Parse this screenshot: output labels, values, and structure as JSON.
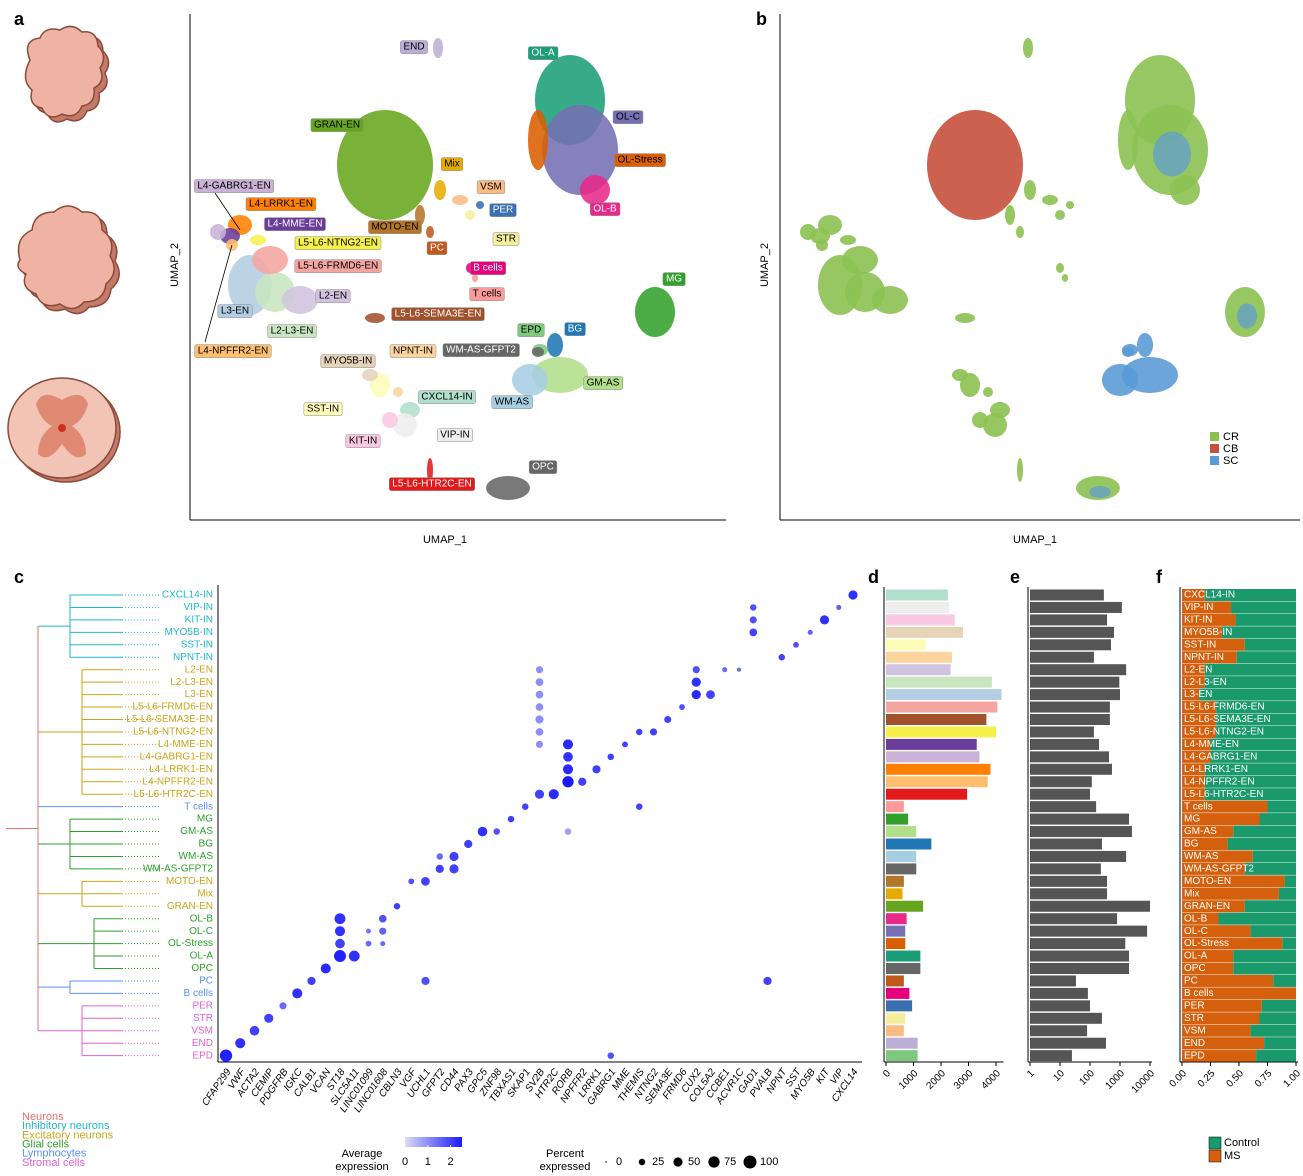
{
  "chart_data": [
    {
      "type": "umap",
      "panel": "a",
      "x_label": "UMAP_1",
      "y_label": "UMAP_2",
      "clusters": [
        {
          "name": "CXCL14-IN",
          "color": "#b2dfcd"
        },
        {
          "name": "VIP-IN",
          "color": "#eeeeee"
        },
        {
          "name": "KIT-IN",
          "color": "#f9c9e3"
        },
        {
          "name": "MYO5B-IN",
          "color": "#e6d3b8"
        },
        {
          "name": "SST-IN",
          "color": "#fdfcb8"
        },
        {
          "name": "NPNT-IN",
          "color": "#fdd49e"
        },
        {
          "name": "L2-EN",
          "color": "#d2c4e0"
        },
        {
          "name": "L2-L3-EN",
          "color": "#c8e6c0"
        },
        {
          "name": "L3-EN",
          "color": "#b3cde3"
        },
        {
          "name": "L5-L6-FRMD6-EN",
          "color": "#f4a5a0"
        },
        {
          "name": "L5-L6-SEMA3E-EN",
          "color": "#a0522d"
        },
        {
          "name": "L5-L6-NTNG2-EN",
          "color": "#f6f04a"
        },
        {
          "name": "L4-MME-EN",
          "color": "#6a3d9a"
        },
        {
          "name": "L4-GABRG1-EN",
          "color": "#cab2d6"
        },
        {
          "name": "L4-LRRK1-EN",
          "color": "#ff7f00"
        },
        {
          "name": "L4-NPFFR2-EN",
          "color": "#fdbf6f"
        },
        {
          "name": "L5-L6-HTR2C-EN",
          "color": "#e31a1c"
        },
        {
          "name": "T cells",
          "color": "#fb9a99"
        },
        {
          "name": "MG",
          "color": "#33a02c"
        },
        {
          "name": "GM-AS",
          "color": "#b2df8a"
        },
        {
          "name": "BG",
          "color": "#1f78b4"
        },
        {
          "name": "WM-AS",
          "color": "#a6cee3"
        },
        {
          "name": "WM-AS-GFPT2",
          "color": "#666666"
        },
        {
          "name": "MOTO-EN",
          "color": "#b5762a"
        },
        {
          "name": "Mix",
          "color": "#e6ab02"
        },
        {
          "name": "GRAN-EN",
          "color": "#66a61e"
        },
        {
          "name": "OL-B",
          "color": "#e7298a"
        },
        {
          "name": "OL-C",
          "color": "#7570b3"
        },
        {
          "name": "OL-Stress",
          "color": "#d95f02"
        },
        {
          "name": "OL-A",
          "color": "#1b9e77"
        },
        {
          "name": "OPC",
          "color": "#666666"
        },
        {
          "name": "PC",
          "color": "#c05a1c"
        },
        {
          "name": "B cells",
          "color": "#e6007e"
        },
        {
          "name": "PER",
          "color": "#3a6fb0"
        },
        {
          "name": "STR",
          "color": "#f5ee9c"
        },
        {
          "name": "VSM",
          "color": "#fdbb84"
        },
        {
          "name": "END",
          "color": "#bcaed6"
        },
        {
          "name": "EPD",
          "color": "#7fc97f"
        }
      ]
    },
    {
      "type": "umap_region",
      "panel": "b",
      "x_label": "UMAP_1",
      "y_label": "UMAP_2",
      "series": [
        {
          "name": "CR",
          "color": "#8cc152"
        },
        {
          "name": "CB",
          "color": "#c8503c"
        },
        {
          "name": "SC",
          "color": "#5b9bd5"
        }
      ]
    },
    {
      "type": "dot",
      "panel": "c",
      "rows": [
        "CXCL14-IN",
        "VIP-IN",
        "KIT-IN",
        "MYO5B-IN",
        "SST-IN",
        "NPNT-IN",
        "L2-EN",
        "L2-L3-EN",
        "L3-EN",
        "L5-L6-FRMD6-EN",
        "L5-L6-SEMA3E-EN",
        "L5-L6-NTNG2-EN",
        "L4-MME-EN",
        "L4-GABRG1-EN",
        "L4-LRRK1-EN",
        "L4-NPFFR2-EN",
        "L5-L6-HTR2C-EN",
        "T cells",
        "MG",
        "GM-AS",
        "BG",
        "WM-AS",
        "WM-AS-GFPT2",
        "MOTO-EN",
        "Mix",
        "GRAN-EN",
        "OL-B",
        "OL-C",
        "OL-Stress",
        "OL-A",
        "OPC",
        "PC",
        "B cells",
        "PER",
        "STR",
        "VSM",
        "END",
        "EPD"
      ],
      "row_colors": [
        "#1fb8c9",
        "#1fb8c9",
        "#1fb8c9",
        "#1fb8c9",
        "#1fb8c9",
        "#1fb8c9",
        "#c9a51a",
        "#c9a51a",
        "#c9a51a",
        "#c9a51a",
        "#c9a51a",
        "#c9a51a",
        "#c9a51a",
        "#c9a51a",
        "#c9a51a",
        "#c9a51a",
        "#c9a51a",
        "#5b8ff9",
        "#2ca02c",
        "#2ca02c",
        "#2ca02c",
        "#2ca02c",
        "#2ca02c",
        "#c9a51a",
        "#c9a51a",
        "#c9a51a",
        "#2ca02c",
        "#2ca02c",
        "#2ca02c",
        "#2ca02c",
        "#2ca02c",
        "#5b8ff9",
        "#5b8ff9",
        "#e060d0",
        "#e060d0",
        "#e060d0",
        "#e060d0",
        "#e060d0"
      ],
      "genes": [
        "CFAP299",
        "VWF",
        "ACTA2",
        "CEMIP",
        "PDGFRB",
        "IGKC",
        "CALB1",
        "VCAN",
        "ST18",
        "SLC5A11",
        "LINC01099",
        "LINC01608",
        "CBLN3",
        "VGF",
        "UCHL1",
        "GFPT2",
        "CD44",
        "PAX3",
        "GPC5",
        "ZNF98",
        "TBXAS1",
        "SKAP1",
        "SV2B",
        "HTR2C",
        "RORB",
        "NPFFR2",
        "LRRK1",
        "GABRG1",
        "MME",
        "THEMIS",
        "NTNG2",
        "SEMA3E",
        "FRMD6",
        "CUX2",
        "COL5A2",
        "CCBE1",
        "ACVR1C",
        "GAD1",
        "PVALB",
        "NPNT",
        "SST",
        "MYO5B",
        "KIT",
        "VIP",
        "CXCL14"
      ],
      "dots": [
        [
          37,
          0,
          90,
          2.4
        ],
        [
          36,
          1,
          60,
          2.2
        ],
        [
          35,
          2,
          55,
          2
        ],
        [
          34,
          3,
          50,
          2
        ],
        [
          33,
          4,
          30,
          1.5
        ],
        [
          32,
          5,
          60,
          2.2
        ],
        [
          31,
          6,
          40,
          2
        ],
        [
          30,
          7,
          60,
          2.3
        ],
        [
          29,
          8,
          85,
          2.4
        ],
        [
          29,
          9,
          70,
          2.2
        ],
        [
          26,
          8,
          70,
          2.2
        ],
        [
          27,
          8,
          60,
          2.2
        ],
        [
          28,
          8,
          55,
          2
        ],
        [
          26,
          11,
          35,
          1.8
        ],
        [
          27,
          11,
          30,
          1.6
        ],
        [
          28,
          10,
          20,
          1.5
        ],
        [
          28,
          11,
          15,
          1.5
        ],
        [
          27,
          10,
          15,
          1.3
        ],
        [
          25,
          12,
          25,
          2
        ],
        [
          23,
          13,
          20,
          1.8
        ],
        [
          23,
          14,
          45,
          2
        ],
        [
          22,
          15,
          40,
          2
        ],
        [
          22,
          16,
          50,
          2
        ],
        [
          21,
          16,
          50,
          2
        ],
        [
          21,
          15,
          25,
          1.5
        ],
        [
          20,
          17,
          40,
          2
        ],
        [
          19,
          18,
          55,
          2.2
        ],
        [
          19,
          19,
          25,
          1.8
        ],
        [
          18,
          20,
          25,
          2
        ],
        [
          17,
          21,
          25,
          2
        ],
        [
          16,
          22,
          50,
          2
        ],
        [
          16,
          23,
          60,
          2.3
        ],
        [
          15,
          24,
          75,
          2.5
        ],
        [
          15,
          25,
          40,
          2
        ],
        [
          14,
          24,
          60,
          2.3
        ],
        [
          14,
          26,
          40,
          2
        ],
        [
          13,
          24,
          55,
          2.2
        ],
        [
          13,
          27,
          25,
          2
        ],
        [
          12,
          24,
          60,
          2.3
        ],
        [
          12,
          28,
          20,
          2
        ],
        [
          11,
          29,
          25,
          2
        ],
        [
          11,
          30,
          30,
          2
        ],
        [
          10,
          31,
          30,
          2
        ],
        [
          9,
          32,
          20,
          1.8
        ],
        [
          8,
          33,
          50,
          2.3
        ],
        [
          8,
          34,
          45,
          2
        ],
        [
          7,
          33,
          50,
          2.2
        ],
        [
          6,
          33,
          30,
          1.8
        ],
        [
          6,
          35,
          15,
          1.5
        ],
        [
          6,
          36,
          10,
          1.5
        ],
        [
          5,
          39,
          25,
          2
        ],
        [
          4,
          40,
          20,
          1.8
        ],
        [
          3,
          41,
          15,
          1.6
        ],
        [
          3,
          37,
          35,
          2
        ],
        [
          2,
          37,
          30,
          1.8
        ],
        [
          2,
          42,
          50,
          2.2
        ],
        [
          1,
          37,
          25,
          1.8
        ],
        [
          1,
          43,
          15,
          1.6
        ],
        [
          0,
          44,
          50,
          2.2
        ],
        [
          31,
          38,
          40,
          2
        ],
        [
          31,
          14,
          40,
          1.8
        ],
        [
          37,
          27,
          25,
          1.8
        ],
        [
          17,
          29,
          25,
          2
        ],
        [
          6,
          22,
          30,
          1
        ],
        [
          7,
          22,
          35,
          1
        ],
        [
          8,
          22,
          35,
          1
        ],
        [
          9,
          22,
          35,
          1
        ],
        [
          10,
          22,
          40,
          1
        ],
        [
          11,
          22,
          35,
          1
        ],
        [
          12,
          22,
          30,
          1
        ],
        [
          19,
          24,
          25,
          0.8
        ]
      ],
      "groups": [
        {
          "name": "Neurons",
          "color": "#e8736c"
        },
        {
          "name": "Inhibitory neurons",
          "color": "#1fb8c9"
        },
        {
          "name": "Excitatory neurons",
          "color": "#c9a51a"
        },
        {
          "name": "Glial cells",
          "color": "#2ca02c"
        },
        {
          "name": "Lymphocytes",
          "color": "#5b8ff9"
        },
        {
          "name": "Stromal cells",
          "color": "#e060d0"
        }
      ],
      "color_legend_title": [
        "Average",
        "expression"
      ],
      "color_ticks": [
        0,
        1,
        2
      ],
      "clim": [
        0,
        2.5
      ],
      "color_range": [
        "#dcdcf2",
        "#1a1aff"
      ],
      "size_legend_title": [
        "Percent",
        "expressed"
      ],
      "size_ticks": [
        0,
        25,
        50,
        75,
        100
      ]
    },
    {
      "type": "hbar",
      "panel": "d",
      "values": [
        2250,
        2300,
        2500,
        2800,
        1450,
        2400,
        2350,
        3850,
        4200,
        4050,
        3650,
        4000,
        3300,
        3400,
        3800,
        3700,
        2950,
        650,
        800,
        1100,
        1650,
        1100,
        1100,
        650,
        600,
        1350,
        750,
        700,
        700,
        1250,
        1250,
        650,
        850,
        950,
        700,
        650,
        1150,
        1150
      ],
      "xlim": [
        0,
        4200
      ],
      "xticks": [
        0,
        1000,
        2000,
        3000,
        4000
      ]
    },
    {
      "type": "hbar",
      "panel": "e",
      "log": true,
      "color": "#555555",
      "values": [
        290,
        1150,
        370,
        630,
        500,
        135,
        1600,
        950,
        1000,
        460,
        460,
        135,
        200,
        430,
        540,
        115,
        100,
        160,
        2000,
        2500,
        250,
        1600,
        230,
        370,
        370,
        10000,
        800,
        8000,
        1500,
        2000,
        2000,
        34,
        85,
        100,
        250,
        80,
        340,
        25
      ],
      "xlim": [
        1,
        10000
      ],
      "xticks": [
        1,
        10,
        100,
        1000,
        10000
      ]
    },
    {
      "type": "stacked_hbar",
      "panel": "f",
      "categories": [
        "CXCL14-IN",
        "VIP-IN",
        "KIT-IN",
        "MYO5B-IN",
        "SST-IN",
        "NPNT-IN",
        "L2-EN",
        "L2-L3-EN",
        "L3-EN",
        "L5-L6-FRMD6-EN",
        "L5-L6-SEMA3E-EN",
        "L5-L6-NTNG2-EN",
        "L4-MME-EN",
        "L4-GABRG1-EN",
        "L4-LRRK1-EN",
        "L4-NPFFR2-EN",
        "L5-L6-HTR2C-EN",
        "T cells",
        "MG",
        "GM-AS",
        "BG",
        "WM-AS",
        "WM-AS-GFPT2",
        "MOTO-EN",
        "Mix",
        "GRAN-EN",
        "OL-B",
        "OL-C",
        "OL-Stress",
        "OL-A",
        "OPC",
        "PC",
        "B cells",
        "PER",
        "STR",
        "VSM",
        "END",
        "EPD"
      ],
      "series": [
        {
          "name": "Control",
          "color": "#1a9a6c",
          "values": [
            0.8,
            0.57,
            0.53,
            0.65,
            0.45,
            0.52,
            0.8,
            0.8,
            0.85,
            0.7,
            0.7,
            0.7,
            0.75,
            0.75,
            0.8,
            0.8,
            0.8,
            0.25,
            0.32,
            0.55,
            0.6,
            0.38,
            0.45,
            0.1,
            0.15,
            0.45,
            0.68,
            0.4,
            0.12,
            0.55,
            0.55,
            0.2,
            0,
            0.3,
            0.32,
            0.4,
            0.28,
            0.35
          ]
        },
        {
          "name": "MS",
          "color": "#d4600e",
          "values": [
            0.2,
            0.43,
            0.47,
            0.35,
            0.55,
            0.48,
            0.2,
            0.2,
            0.15,
            0.3,
            0.3,
            0.3,
            0.25,
            0.25,
            0.2,
            0.2,
            0.2,
            0.75,
            0.68,
            0.45,
            0.4,
            0.62,
            0.55,
            0.9,
            0.85,
            0.55,
            0.32,
            0.6,
            0.88,
            0.45,
            0.45,
            0.8,
            1,
            0.7,
            0.68,
            0.6,
            0.72,
            0.65
          ]
        }
      ],
      "xlim": [
        0,
        1
      ],
      "xticks": [
        {
          "value": 0,
          "label": "0.00"
        },
        {
          "value": 0.25,
          "label": "0.25"
        },
        {
          "value": 0.5,
          "label": "0.50"
        },
        {
          "value": 0.75,
          "label": "0.75"
        },
        {
          "value": 1,
          "label": "1.00"
        }
      ]
    }
  ]
}
